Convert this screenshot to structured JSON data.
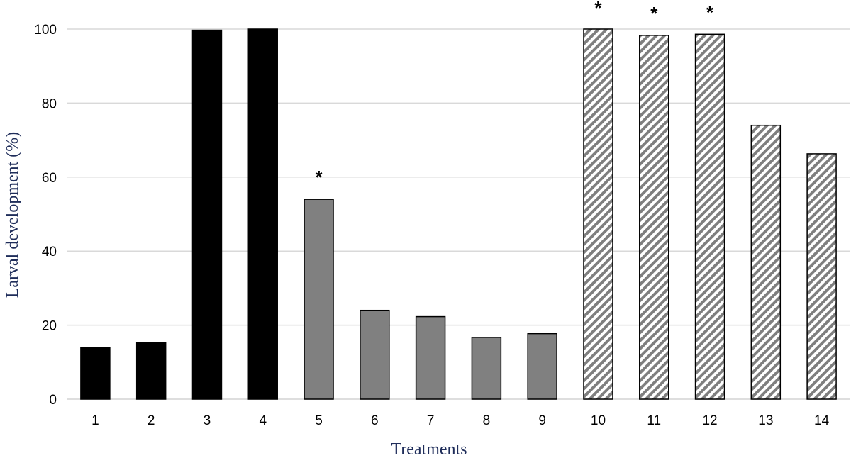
{
  "chart_data": {
    "type": "bar",
    "categories": [
      "1",
      "2",
      "3",
      "4",
      "5",
      "6",
      "7",
      "8",
      "9",
      "10",
      "11",
      "12",
      "13",
      "14"
    ],
    "values": [
      14,
      15.3,
      99.7,
      100,
      54,
      24,
      22.3,
      16.7,
      17.7,
      100,
      98.3,
      98.6,
      74,
      66.3
    ],
    "groups": [
      "solid-black",
      "solid-black",
      "solid-black",
      "solid-black",
      "solid-gray",
      "solid-gray",
      "solid-gray",
      "solid-gray",
      "solid-gray",
      "hatched",
      "hatched",
      "hatched",
      "hatched",
      "hatched"
    ],
    "significance": [
      "",
      "",
      "",
      "",
      "*",
      "",
      "",
      "",
      "",
      "*",
      "*",
      "*",
      "",
      ""
    ],
    "xlabel": "Treatments",
    "ylabel": "Larval development (%)",
    "ylim": [
      0,
      100
    ],
    "yticks": [
      "0",
      "20",
      "40",
      "60",
      "80",
      "100"
    ],
    "grid": true,
    "colors": {
      "solid-black": "#000000",
      "solid-gray": "#808080",
      "hatch": "#7f7f7f",
      "grid": "#d9d9d9",
      "axis_title": "#1f2d5a"
    }
  }
}
